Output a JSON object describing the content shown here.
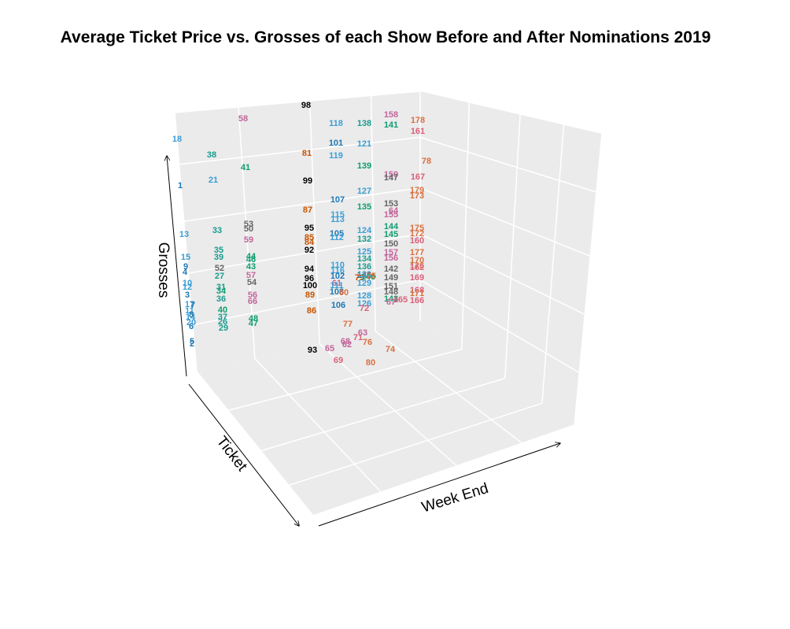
{
  "chart_data": {
    "type": "scatter",
    "title": "Average Ticket Price vs. Grosses of each Show Before and After Nominations 2019",
    "xlabel": "Week End",
    "ylabel": "Ticket",
    "zlabel": "Grosses",
    "grid": true,
    "projection": "3d",
    "colors": {
      "show_a": "#1f78b4",
      "show_b": "#3a9fd6",
      "show_c": "#1a9c8f",
      "show_d": "#0f9d70",
      "show_e": "#646464",
      "show_f": "#c2659b",
      "show_g": "#d97040",
      "show_h": "#c85400",
      "show_i": "#8c3a00",
      "show_j": "#000000",
      "show_k": "#d9607a",
      "show_l": "#29a6c8"
    },
    "points": [
      {
        "label": "98",
        "color": "#000000"
      },
      {
        "label": "58",
        "color": "#c2659b"
      },
      {
        "label": "18",
        "color": "#3a9fd6"
      },
      {
        "label": "118",
        "color": "#3a9fd6"
      },
      {
        "label": "138",
        "color": "#1a9c8f"
      },
      {
        "label": "158",
        "color": "#c2659b"
      },
      {
        "label": "178",
        "color": "#d97040"
      },
      {
        "label": "141",
        "color": "#0f9d70"
      },
      {
        "label": "161",
        "color": "#d9607a"
      },
      {
        "label": "101",
        "color": "#1f78b4"
      },
      {
        "label": "121",
        "color": "#3a9fd6"
      },
      {
        "label": "38",
        "color": "#1a9c8f"
      },
      {
        "label": "81",
        "color": "#c85400"
      },
      {
        "label": "119",
        "color": "#3a9fd6"
      },
      {
        "label": "78",
        "color": "#d97040"
      },
      {
        "label": "41",
        "color": "#0f9d70"
      },
      {
        "label": "139",
        "color": "#0f9d70"
      },
      {
        "label": "159",
        "color": "#c2659b"
      },
      {
        "label": "147",
        "color": "#646464"
      },
      {
        "label": "167",
        "color": "#d9607a"
      },
      {
        "label": "21",
        "color": "#3a9fd6"
      },
      {
        "label": "1",
        "color": "#1f78b4"
      },
      {
        "label": "99",
        "color": "#000000"
      },
      {
        "label": "127",
        "color": "#3a9fd6"
      },
      {
        "label": "179",
        "color": "#d97040"
      },
      {
        "label": "173",
        "color": "#d97040"
      },
      {
        "label": "107",
        "color": "#1f78b4"
      },
      {
        "label": "153",
        "color": "#646464"
      },
      {
        "label": "135",
        "color": "#0f9d70"
      },
      {
        "label": "87",
        "color": "#c85400"
      },
      {
        "label": "64",
        "color": "#c2659b"
      },
      {
        "label": "155",
        "color": "#c2659b"
      },
      {
        "label": "115",
        "color": "#3a9fd6"
      },
      {
        "label": "113",
        "color": "#3a9fd6"
      },
      {
        "label": "53",
        "color": "#646464"
      },
      {
        "label": "50",
        "color": "#646464"
      },
      {
        "label": "33",
        "color": "#1a9c8f"
      },
      {
        "label": "144",
        "color": "#0f9d70"
      },
      {
        "label": "175",
        "color": "#d97040"
      },
      {
        "label": "95",
        "color": "#000000"
      },
      {
        "label": "124",
        "color": "#3a9fd6"
      },
      {
        "label": "13",
        "color": "#3a9fd6"
      },
      {
        "label": "105",
        "color": "#1f78b4"
      },
      {
        "label": "145",
        "color": "#0f9d70"
      },
      {
        "label": "172",
        "color": "#d97040"
      },
      {
        "label": "59",
        "color": "#c2659b"
      },
      {
        "label": "85",
        "color": "#c85400"
      },
      {
        "label": "112",
        "color": "#3a9fd6"
      },
      {
        "label": "132",
        "color": "#1a9c8f"
      },
      {
        "label": "160",
        "color": "#d9607a"
      },
      {
        "label": "84",
        "color": "#c85400"
      },
      {
        "label": "150",
        "color": "#646464"
      },
      {
        "label": "35",
        "color": "#1a9c8f"
      },
      {
        "label": "92",
        "color": "#000000"
      },
      {
        "label": "125",
        "color": "#3a9fd6"
      },
      {
        "label": "157",
        "color": "#c2659b"
      },
      {
        "label": "177",
        "color": "#d97040"
      },
      {
        "label": "39",
        "color": "#1a9c8f"
      },
      {
        "label": "15",
        "color": "#3a9fd6"
      },
      {
        "label": "44",
        "color": "#0f9d70"
      },
      {
        "label": "46",
        "color": "#0f9d70"
      },
      {
        "label": "134",
        "color": "#1a9c8f"
      },
      {
        "label": "156",
        "color": "#c2659b"
      },
      {
        "label": "170",
        "color": "#d97040"
      },
      {
        "label": "43",
        "color": "#0f9d70"
      },
      {
        "label": "110",
        "color": "#3a9fd6"
      },
      {
        "label": "136",
        "color": "#1a9c8f"
      },
      {
        "label": "176",
        "color": "#d97040"
      },
      {
        "label": "9",
        "color": "#1f78b4"
      },
      {
        "label": "52",
        "color": "#646464"
      },
      {
        "label": "94",
        "color": "#000000"
      },
      {
        "label": "116",
        "color": "#3a9fd6"
      },
      {
        "label": "142",
        "color": "#646464"
      },
      {
        "label": "162",
        "color": "#d9607a"
      },
      {
        "label": "4",
        "color": "#1f78b4"
      },
      {
        "label": "57",
        "color": "#c2659b"
      },
      {
        "label": "102",
        "color": "#1f78b4"
      },
      {
        "label": "79",
        "color": "#c85400"
      },
      {
        "label": "140",
        "color": "#646464"
      },
      {
        "label": "146",
        "color": "#0f9d70"
      },
      {
        "label": "27",
        "color": "#1a9c8f"
      },
      {
        "label": "96",
        "color": "#000000"
      },
      {
        "label": "123",
        "color": "#3a9fd6"
      },
      {
        "label": "149",
        "color": "#646464"
      },
      {
        "label": "169",
        "color": "#d9607a"
      },
      {
        "label": "10",
        "color": "#3a9fd6"
      },
      {
        "label": "54",
        "color": "#646464"
      },
      {
        "label": "61",
        "color": "#c2659b"
      },
      {
        "label": "129",
        "color": "#3a9fd6"
      },
      {
        "label": "12",
        "color": "#3a9fd6"
      },
      {
        "label": "31",
        "color": "#1a9c8f"
      },
      {
        "label": "100",
        "color": "#000000"
      },
      {
        "label": "111",
        "color": "#3a9fd6"
      },
      {
        "label": "151",
        "color": "#646464"
      },
      {
        "label": "168",
        "color": "#d9607a"
      },
      {
        "label": "3",
        "color": "#1f78b4"
      },
      {
        "label": "34",
        "color": "#0f9d70"
      },
      {
        "label": "108",
        "color": "#1f78b4"
      },
      {
        "label": "148",
        "color": "#646464"
      },
      {
        "label": "171",
        "color": "#d97040"
      },
      {
        "label": "56",
        "color": "#c2659b"
      },
      {
        "label": "89",
        "color": "#c85400"
      },
      {
        "label": "60",
        "color": "#d97040"
      },
      {
        "label": "128",
        "color": "#3a9fd6"
      },
      {
        "label": "143",
        "color": "#0f9d70"
      },
      {
        "label": "165",
        "color": "#d9607a"
      },
      {
        "label": "36",
        "color": "#1a9c8f"
      },
      {
        "label": "66",
        "color": "#c2659b"
      },
      {
        "label": "106",
        "color": "#1f78b4"
      },
      {
        "label": "126",
        "color": "#3a9fd6"
      },
      {
        "label": "67",
        "color": "#c2659b"
      },
      {
        "label": "166",
        "color": "#d9607a"
      },
      {
        "label": "17",
        "color": "#3a9fd6"
      },
      {
        "label": "72",
        "color": "#d9607a"
      },
      {
        "label": "11",
        "color": "#3a9fd6"
      },
      {
        "label": "40",
        "color": "#0f9d70"
      },
      {
        "label": "86",
        "color": "#c85400"
      },
      {
        "label": "14",
        "color": "#3a9fd6"
      },
      {
        "label": "37",
        "color": "#1a9c8f"
      },
      {
        "label": "48",
        "color": "#0f9d70"
      },
      {
        "label": "20",
        "color": "#3a9fd6"
      },
      {
        "label": "26",
        "color": "#1a9c8f"
      },
      {
        "label": "47",
        "color": "#0f9d70"
      },
      {
        "label": "6",
        "color": "#1f78b4"
      },
      {
        "label": "29",
        "color": "#1a9c8f"
      },
      {
        "label": "77",
        "color": "#d97040"
      },
      {
        "label": "63",
        "color": "#c2659b"
      },
      {
        "label": "71",
        "color": "#d9607a"
      },
      {
        "label": "68",
        "color": "#c2659b"
      },
      {
        "label": "76",
        "color": "#d97040"
      },
      {
        "label": "62",
        "color": "#c2659b"
      },
      {
        "label": "2",
        "color": "#1f78b4"
      },
      {
        "label": "93",
        "color": "#000000"
      },
      {
        "label": "65",
        "color": "#c2659b"
      },
      {
        "label": "74",
        "color": "#d97040"
      },
      {
        "label": "69",
        "color": "#d9607a"
      },
      {
        "label": "80",
        "color": "#d97040"
      },
      {
        "label": "75",
        "color": "#d97040"
      },
      {
        "label": "5",
        "color": "#1f78b4"
      },
      {
        "label": "7",
        "color": "#1f78b4"
      },
      {
        "label": "8",
        "color": "#1f78b4"
      }
    ]
  }
}
